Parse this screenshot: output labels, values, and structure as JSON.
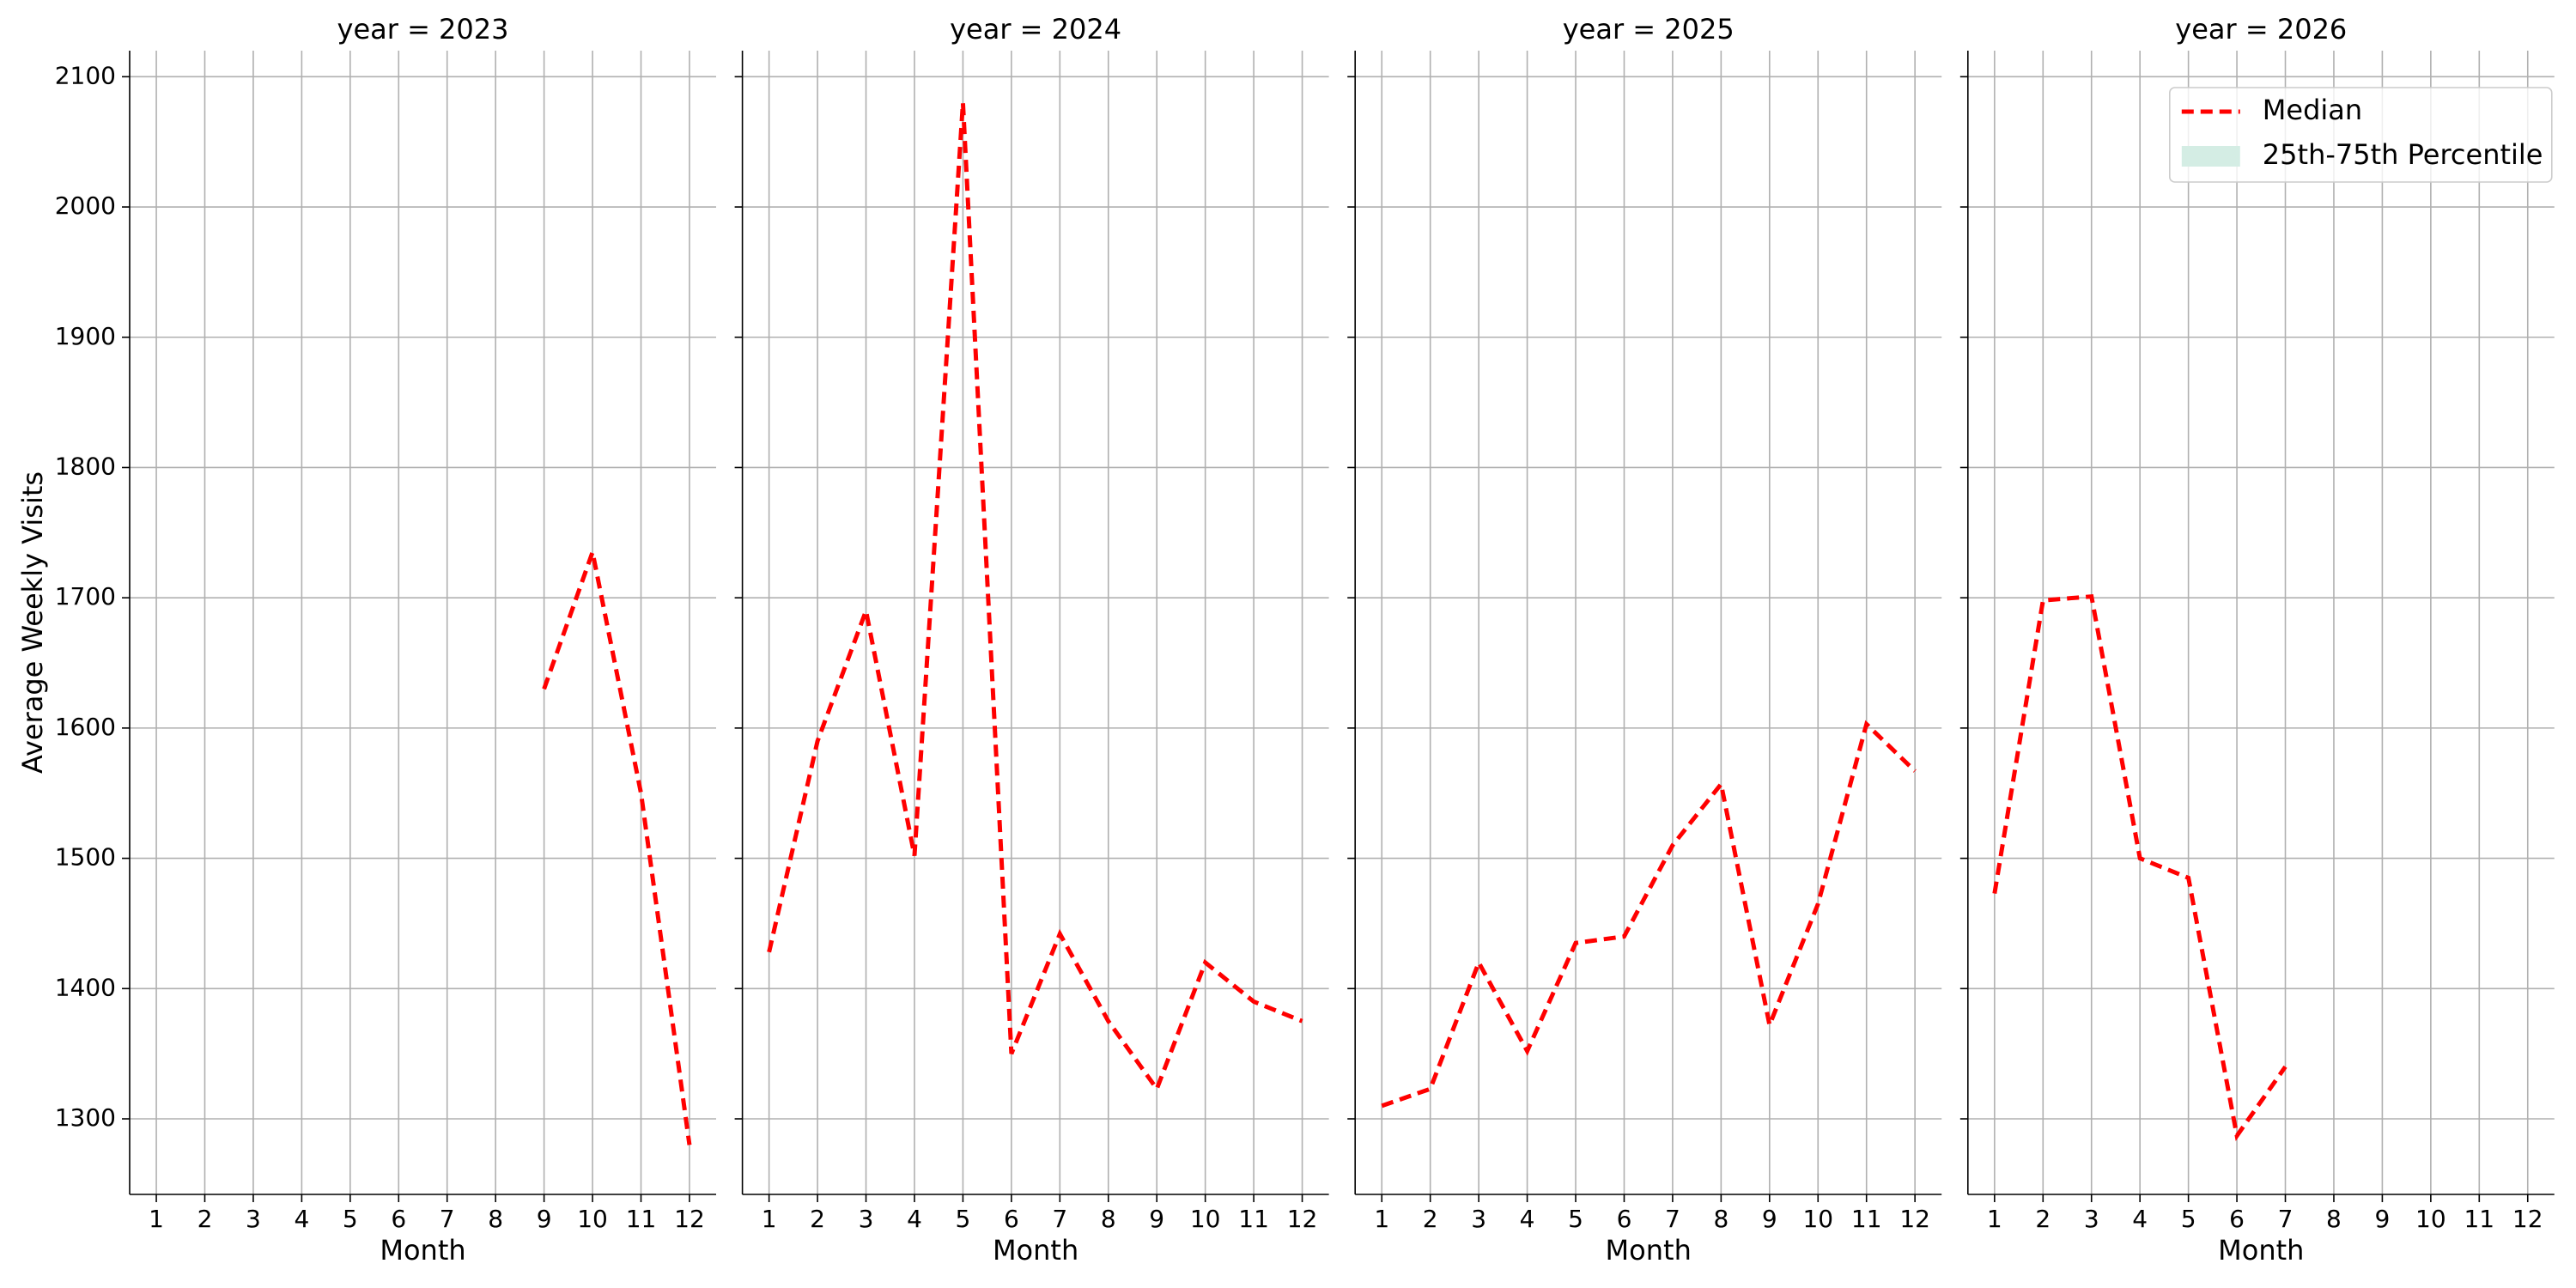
{
  "chart_data": [
    {
      "type": "line",
      "title": "year = 2023",
      "xlabel": "Month",
      "ylabel": "Average Weekly Visits",
      "x": [
        1,
        2,
        3,
        4,
        5,
        6,
        7,
        8,
        9,
        10,
        11,
        12
      ],
      "series": [
        {
          "name": "Median",
          "color": "#ff0000",
          "values": [
            null,
            null,
            null,
            null,
            null,
            null,
            null,
            null,
            1630,
            1735,
            1550,
            1280
          ]
        }
      ],
      "xlim": [
        0.45,
        12.55
      ],
      "ylim": [
        1242,
        2120
      ],
      "xticks": [
        1,
        2,
        3,
        4,
        5,
        6,
        7,
        8,
        9,
        10,
        11,
        12
      ],
      "yticks": [
        1300,
        1400,
        1500,
        1600,
        1700,
        1800,
        1900,
        2000,
        2100
      ],
      "yticklabels": true,
      "grid": true
    },
    {
      "type": "line",
      "title": "year = 2024",
      "xlabel": "Month",
      "x": [
        1,
        2,
        3,
        4,
        5,
        6,
        7,
        8,
        9,
        10,
        11,
        12
      ],
      "series": [
        {
          "name": "Median",
          "color": "#ff0000",
          "values": [
            1428,
            1590,
            1690,
            1502,
            2080,
            1350,
            1442,
            1375,
            1323,
            1420,
            1390,
            1375
          ]
        }
      ],
      "xlim": [
        0.45,
        12.55
      ],
      "ylim": [
        1242,
        2120
      ],
      "xticks": [
        1,
        2,
        3,
        4,
        5,
        6,
        7,
        8,
        9,
        10,
        11,
        12
      ],
      "yticks": [
        1300,
        1400,
        1500,
        1600,
        1700,
        1800,
        1900,
        2000,
        2100
      ],
      "yticklabels": false,
      "grid": true
    },
    {
      "type": "line",
      "title": "year = 2025",
      "xlabel": "Month",
      "x": [
        1,
        2,
        3,
        4,
        5,
        6,
        7,
        8,
        9,
        10,
        11,
        12
      ],
      "series": [
        {
          "name": "Median",
          "color": "#ff0000",
          "values": [
            1310,
            1323,
            1420,
            1352,
            1435,
            1440,
            1510,
            1557,
            1372,
            1465,
            1603,
            1567
          ]
        }
      ],
      "xlim": [
        0.45,
        12.55
      ],
      "ylim": [
        1242,
        2120
      ],
      "xticks": [
        1,
        2,
        3,
        4,
        5,
        6,
        7,
        8,
        9,
        10,
        11,
        12
      ],
      "yticks": [
        1300,
        1400,
        1500,
        1600,
        1700,
        1800,
        1900,
        2000,
        2100
      ],
      "yticklabels": false,
      "grid": true
    },
    {
      "type": "line",
      "title": "year = 2026",
      "xlabel": "Month",
      "x": [
        1,
        2,
        3,
        4,
        5,
        6,
        7,
        8,
        9,
        10,
        11,
        12
      ],
      "series": [
        {
          "name": "Median",
          "color": "#ff0000",
          "values": [
            1473,
            1698,
            1701,
            1500,
            1485,
            1287,
            1340,
            null,
            null,
            null,
            null,
            null
          ]
        }
      ],
      "band": {
        "name": "25th-75th Percentile",
        "color": "#d4ede4"
      },
      "legend": "upper right",
      "xlim": [
        0.45,
        12.55
      ],
      "ylim": [
        1242,
        2120
      ],
      "xticks": [
        1,
        2,
        3,
        4,
        5,
        6,
        7,
        8,
        9,
        10,
        11,
        12
      ],
      "yticks": [
        1300,
        1400,
        1500,
        1600,
        1700,
        1800,
        1900,
        2000,
        2100
      ],
      "yticklabels": false,
      "grid": true
    }
  ]
}
